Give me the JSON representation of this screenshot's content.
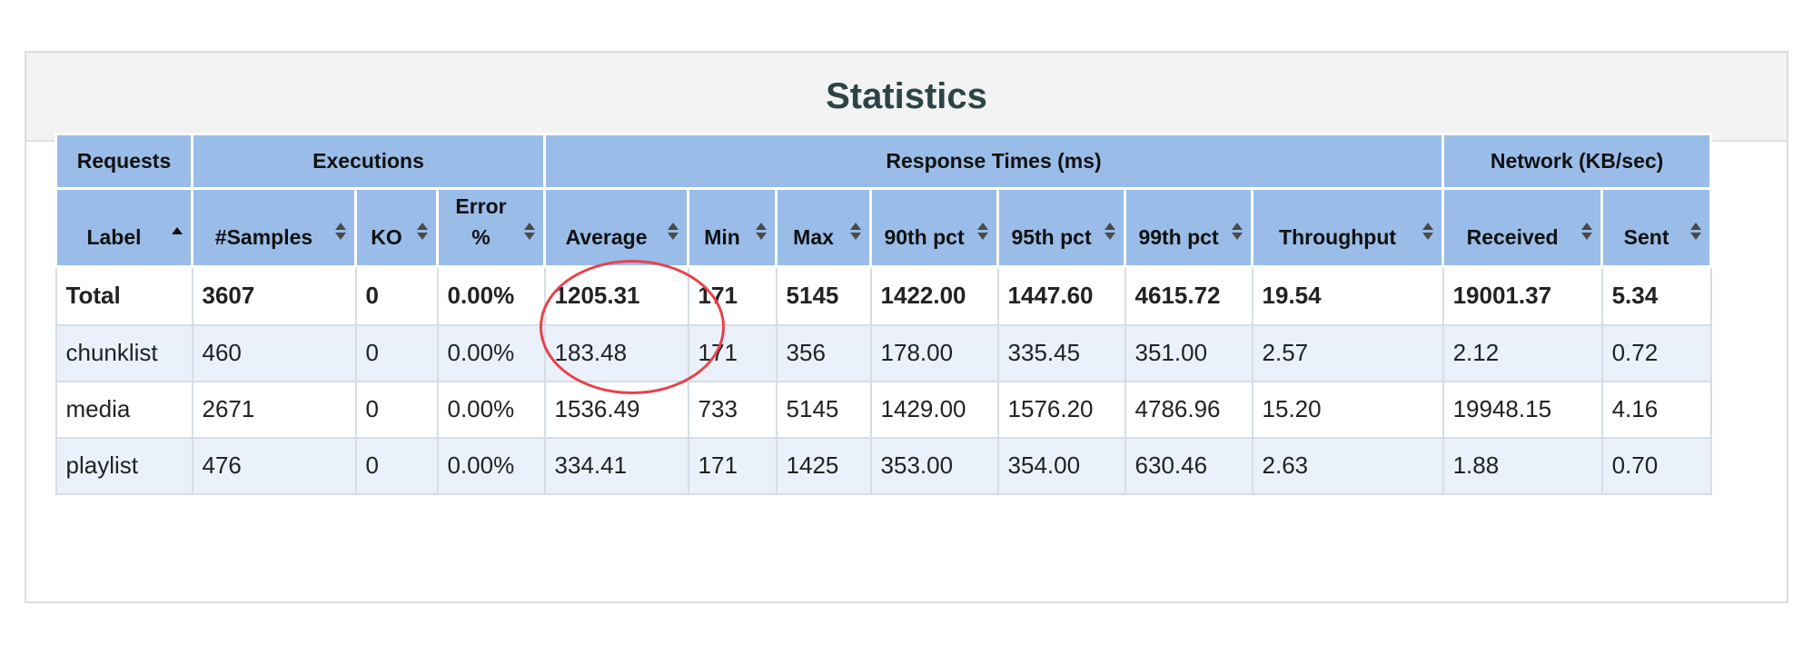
{
  "panel": {
    "title": "Statistics"
  },
  "table": {
    "group_headers": [
      {
        "label": "Requests",
        "span": 1
      },
      {
        "label": "Executions",
        "span": 3
      },
      {
        "label": "Response Times (ms)",
        "span": 7
      },
      {
        "label": "Network (KB/sec)",
        "span": 2
      }
    ],
    "columns": [
      {
        "label": "Label",
        "sort": "asc"
      },
      {
        "label": "#Samples",
        "sort": "both"
      },
      {
        "label": "KO",
        "sort": "both"
      },
      {
        "label": "Error %",
        "sort": "both"
      },
      {
        "label": "Average",
        "sort": "both"
      },
      {
        "label": "Min",
        "sort": "both"
      },
      {
        "label": "Max",
        "sort": "both"
      },
      {
        "label": "90th pct",
        "sort": "both"
      },
      {
        "label": "95th pct",
        "sort": "both"
      },
      {
        "label": "99th pct",
        "sort": "both"
      },
      {
        "label": "Throughput",
        "sort": "both"
      },
      {
        "label": "Received",
        "sort": "both"
      },
      {
        "label": "Sent",
        "sort": "both"
      }
    ],
    "total_row": [
      "Total",
      "3607",
      "0",
      "0.00%",
      "1205.31",
      "171",
      "5145",
      "1422.00",
      "1447.60",
      "4615.72",
      "19.54",
      "19001.37",
      "5.34"
    ],
    "rows": [
      [
        "chunklist",
        "460",
        "0",
        "0.00%",
        "183.48",
        "171",
        "356",
        "178.00",
        "335.45",
        "351.00",
        "2.57",
        "2.12",
        "0.72"
      ],
      [
        "media",
        "2671",
        "0",
        "0.00%",
        "1536.49",
        "733",
        "5145",
        "1429.00",
        "1576.20",
        "4786.96",
        "15.20",
        "19948.15",
        "4.16"
      ],
      [
        "playlist",
        "476",
        "0",
        "0.00%",
        "334.41",
        "171",
        "1425",
        "353.00",
        "354.00",
        "630.46",
        "2.63",
        "1.88",
        "0.70"
      ]
    ]
  },
  "annotation": {
    "color": "#e8434a",
    "target_column": "Average"
  }
}
